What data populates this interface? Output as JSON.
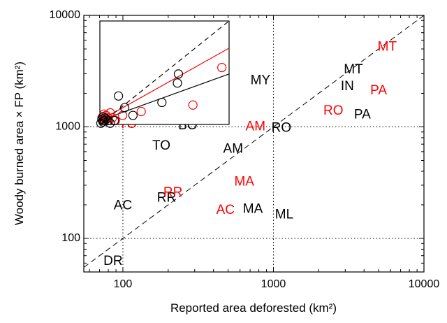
{
  "chart_data": {
    "type": "scatter",
    "xlabel": "Reported area deforested (km²)",
    "ylabel": "Woody burned area × FP (km²)",
    "x_scale": "log",
    "y_scale": "log",
    "xlim": [
      55,
      10000
    ],
    "ylim": [
      50,
      10000
    ],
    "xticks": [
      {
        "value": 100,
        "label": "100"
      },
      {
        "value": 1000,
        "label": "1000"
      },
      {
        "value": 10000,
        "label": "10000"
      }
    ],
    "yticks": [
      {
        "value": 100,
        "label": "100"
      },
      {
        "value": 1000,
        "label": "1000"
      },
      {
        "value": 10000,
        "label": "10000"
      }
    ],
    "grid": true,
    "reference_line": "1:1",
    "colors": {
      "black_series": "#000000",
      "red_series": "#ff0000"
    },
    "series": [
      {
        "color": "black",
        "points": [
          {
            "label": "MT",
            "x": 3400,
            "y": 3250
          },
          {
            "label": "IN",
            "x": 3100,
            "y": 2300
          },
          {
            "label": "MY",
            "x": 820,
            "y": 2600
          },
          {
            "label": "PA",
            "x": 3900,
            "y": 1280
          },
          {
            "label": "RO",
            "x": 1130,
            "y": 970
          },
          {
            "label": "BO",
            "x": 270,
            "y": 1020
          },
          {
            "label": "TO",
            "x": 180,
            "y": 670
          },
          {
            "label": "AM",
            "x": 540,
            "y": 630
          },
          {
            "label": "MA",
            "x": 730,
            "y": 182
          },
          {
            "label": "ML",
            "x": 1180,
            "y": 162
          },
          {
            "label": "RR",
            "x": 195,
            "y": 230
          },
          {
            "label": "AC",
            "x": 100,
            "y": 195
          },
          {
            "label": "DR",
            "x": 86,
            "y": 62
          }
        ]
      },
      {
        "color": "red",
        "points": [
          {
            "label": "MT",
            "x": 5700,
            "y": 5200
          },
          {
            "label": "PA",
            "x": 5000,
            "y": 2100
          },
          {
            "label": "RO",
            "x": 2500,
            "y": 1380
          },
          {
            "label": "AM",
            "x": 760,
            "y": 1000
          },
          {
            "label": "TO",
            "x": 108,
            "y": 1050
          },
          {
            "label": "MA",
            "x": 640,
            "y": 320
          },
          {
            "label": "RR",
            "x": 215,
            "y": 255
          },
          {
            "label": "AC",
            "x": 480,
            "y": 178
          }
        ]
      }
    ],
    "inset": {
      "description": "linear-scale inset scatter with fitted lines",
      "grid": false,
      "black_points": [
        [
          1,
          1
        ],
        [
          2,
          4
        ],
        [
          3,
          2
        ],
        [
          4,
          3
        ],
        [
          5,
          5
        ],
        [
          3,
          6
        ],
        [
          6,
          4
        ],
        [
          8,
          3
        ],
        [
          10,
          1
        ],
        [
          14,
          3
        ],
        [
          18,
          22
        ],
        [
          24,
          13
        ],
        [
          32,
          7
        ],
        [
          60,
          17
        ],
        [
          75,
          32
        ],
        [
          76,
          39
        ]
      ],
      "red_points": [
        [
          2,
          5
        ],
        [
          4,
          8
        ],
        [
          5,
          3
        ],
        [
          6,
          7
        ],
        [
          8,
          5
        ],
        [
          10,
          9
        ],
        [
          12,
          5
        ],
        [
          15,
          3
        ],
        [
          22,
          7
        ],
        [
          40,
          10
        ],
        [
          90,
          15
        ],
        [
          118,
          44
        ]
      ],
      "fit_lines": [
        {
          "color": "black",
          "from": [
            0,
            3
          ],
          "to": [
            125,
            39
          ]
        },
        {
          "color": "red",
          "from": [
            0,
            3
          ],
          "to": [
            125,
            59
          ]
        },
        {
          "color": "black",
          "style": "dashed",
          "from": [
            0,
            0
          ],
          "to": [
            125,
            80
          ]
        }
      ],
      "xlim": [
        0,
        125
      ],
      "ylim": [
        0,
        80
      ]
    }
  }
}
